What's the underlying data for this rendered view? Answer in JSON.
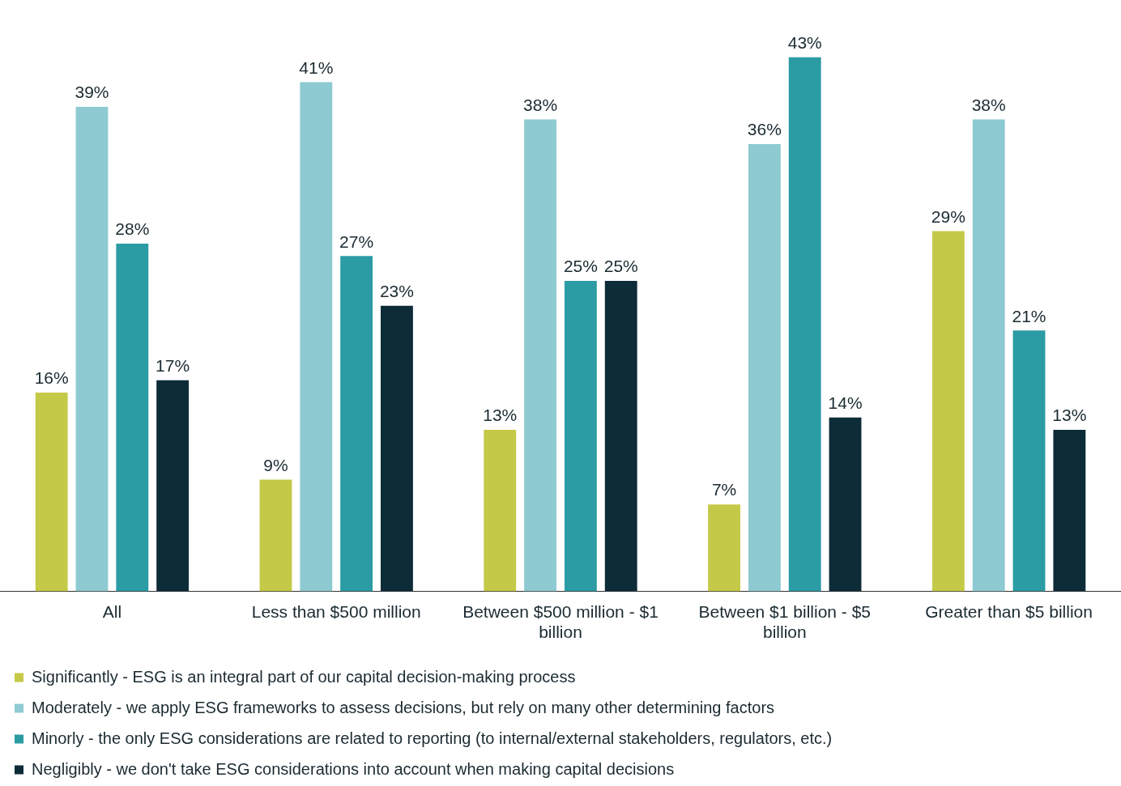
{
  "chart_data": {
    "type": "bar",
    "categories": [
      "All",
      "Less than $500 million",
      "Between $500 million - $1 billion",
      "Between $1 billion - $5 billion",
      "Greater than $5 billion"
    ],
    "series": [
      {
        "name": "Significantly - ESG is an integral part of our capital decision-making process",
        "color": "#c5c948",
        "values": [
          16,
          9,
          13,
          7,
          29
        ],
        "value_labels": [
          "16%",
          "9%",
          "13%",
          "7%",
          "29%"
        ]
      },
      {
        "name": "Moderately - we apply ESG frameworks to assess decisions, but rely on many other determining factors",
        "color": "#8ecad1",
        "values": [
          39,
          41,
          38,
          36,
          38
        ],
        "value_labels": [
          "39%",
          "41%",
          "38%",
          "36%",
          "38%"
        ]
      },
      {
        "name": "Minorly - the only ESG considerations are related to reporting (to internal/external stakeholders, regulators, etc.)",
        "color": "#2b9ca3",
        "values": [
          28,
          27,
          25,
          43,
          21
        ],
        "value_labels": [
          "28%",
          "27%",
          "25%",
          "43%",
          "21%"
        ]
      },
      {
        "name": "Negligibly - we don't take ESG considerations into account when making capital decisions",
        "color": "#0d2c38",
        "values": [
          17,
          23,
          25,
          14,
          13
        ],
        "value_labels": [
          "17%",
          "23%",
          "25%",
          "14%",
          "13%"
        ]
      }
    ],
    "grid": false,
    "legend": "bottom"
  }
}
